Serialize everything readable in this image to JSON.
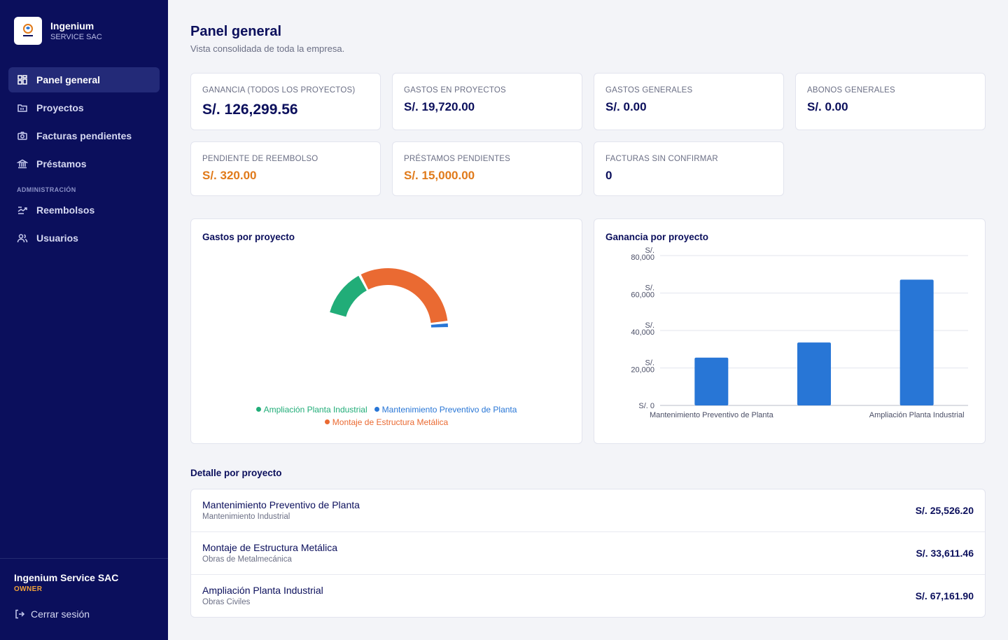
{
  "sidebar": {
    "brand_name": "Ingenium",
    "brand_sub": "SERVICE SAC",
    "items": [
      {
        "label": "Panel general",
        "icon": "dashboard-icon",
        "active": true
      },
      {
        "label": "Proyectos",
        "icon": "folder-icon"
      },
      {
        "label": "Facturas pendientes",
        "icon": "camera-icon"
      },
      {
        "label": "Préstamos",
        "icon": "bank-icon"
      }
    ],
    "admin_section": "ADMINISTRACIÓN",
    "admin_items": [
      {
        "label": "Reembolsos",
        "icon": "refund-icon"
      },
      {
        "label": "Usuarios",
        "icon": "users-icon"
      }
    ],
    "user_name": "Ingenium Service SAC",
    "user_role": "OWNER",
    "logout": "Cerrar sesión"
  },
  "header": {
    "title": "Panel general",
    "subtitle": "Vista consolidada de toda la empresa."
  },
  "kpis": [
    {
      "label": "GANANCIA (TODOS LOS PROYECTOS)",
      "value": "S/. 126,299.56"
    },
    {
      "label": "GASTOS EN PROYECTOS",
      "value": "S/. 19,720.00"
    },
    {
      "label": "GASTOS GENERALES",
      "value": "S/. 0.00"
    },
    {
      "label": "ABONOS GENERALES",
      "value": "S/. 0.00"
    },
    {
      "label": "PENDIENTE DE REEMBOLSO",
      "value": "S/. 320.00"
    },
    {
      "label": "PRÉSTAMOS PENDIENTES",
      "value": "S/. 15,000.00"
    },
    {
      "label": "FACTURAS SIN CONFIRMAR",
      "value": "0"
    }
  ],
  "colors": {
    "sidebar_bg": "#0b0f5c",
    "accent_orange": "#e07a1a",
    "green": "#21ad78",
    "orange": "#ea6a32",
    "blue": "#2876d6"
  },
  "chart_data": [
    {
      "type": "pie",
      "title": "Gastos por proyecto",
      "variant": "half-donut",
      "categories": [
        "Ampliación Planta Industrial",
        "Montaje de Estructura Metálica",
        "Mantenimiento Preventivo de Planta"
      ],
      "values": [
        5700,
        13300,
        720
      ],
      "colors": [
        "#21ad78",
        "#ea6a32",
        "#2876d6"
      ],
      "legend": [
        {
          "label": "Ampliación Planta Industrial",
          "color": "#21ad78"
        },
        {
          "label": "Mantenimiento Preventivo de Planta",
          "color": "#2876d6"
        },
        {
          "label": "Montaje de Estructura Metálica",
          "color": "#ea6a32"
        }
      ]
    },
    {
      "type": "bar",
      "title": "Ganancia por proyecto",
      "categories": [
        "Mantenimiento Preventivo de Planta",
        "Montaje de Estructura Metálica",
        "Ampliación Planta Industrial"
      ],
      "tick_labels": [
        "Mantenimiento Preventivo de Planta",
        "",
        "Ampliación Planta Industrial"
      ],
      "values": [
        25526.2,
        33611.46,
        67161.9
      ],
      "ylim": [
        0,
        80000
      ],
      "yticks": [
        0,
        20000,
        40000,
        60000,
        80000
      ],
      "ytick_labels": [
        [
          "S/. 0"
        ],
        [
          "S/.",
          "20,000"
        ],
        [
          "S/.",
          "40,000"
        ],
        [
          "S/.",
          "60,000"
        ],
        [
          "S/.",
          "80,000"
        ]
      ],
      "grid": true,
      "color": "#2876d6"
    }
  ],
  "detail": {
    "title": "Detalle por proyecto",
    "rows": [
      {
        "name": "Mantenimiento Preventivo de Planta",
        "category": "Mantenimiento Industrial",
        "amount": "S/. 25,526.20"
      },
      {
        "name": "Montaje de Estructura Metálica",
        "category": "Obras de Metalmecánica",
        "amount": "S/. 33,611.46"
      },
      {
        "name": "Ampliación Planta Industrial",
        "category": "Obras Civiles",
        "amount": "S/. 67,161.90"
      }
    ]
  }
}
